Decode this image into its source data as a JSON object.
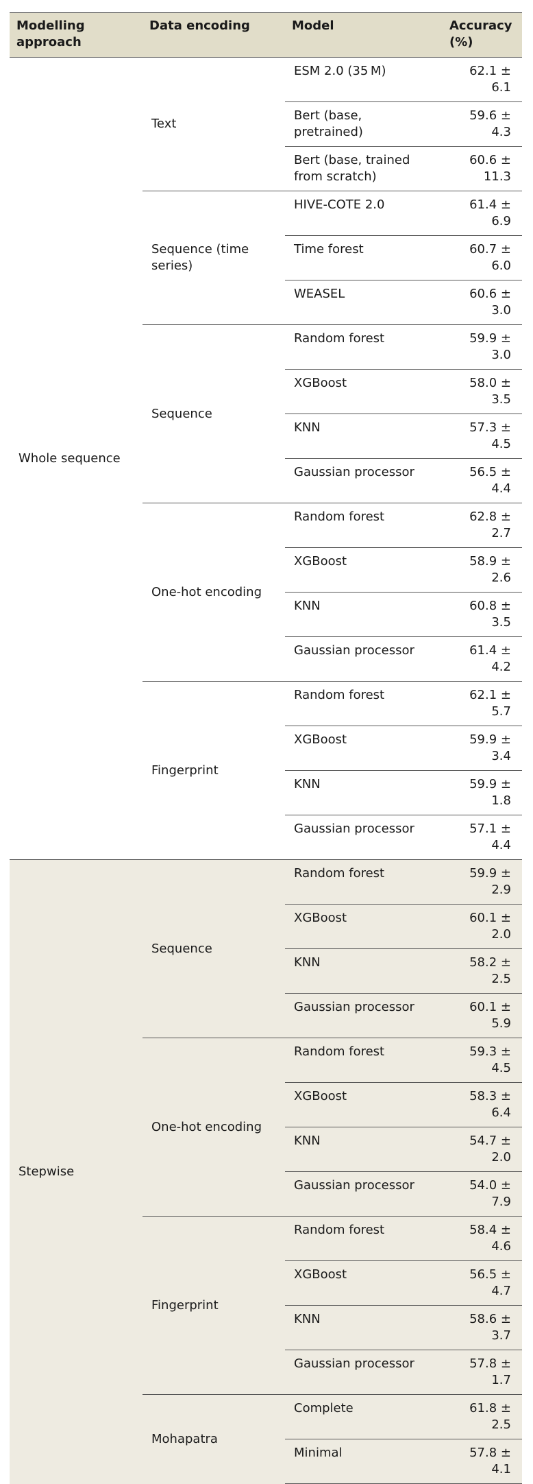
{
  "table": {
    "header": [
      "Modelling approach",
      "Data encoding",
      "Model",
      "Accuracy (%)"
    ],
    "groups": [
      {
        "approach": "Whole sequence",
        "encodings": [
          {
            "encoding": "Text",
            "rows": [
              [
                "ESM 2.0 (35 M)",
                "62.1 ± 6.1"
              ],
              [
                "Bert (base, pretrained)",
                "59.6 ± 4.3"
              ],
              [
                "Bert (base, trained from scratch)",
                "60.6 ± 11.3"
              ]
            ]
          },
          {
            "encoding": "Sequence (time series)",
            "rows": [
              [
                "HIVE-COTE 2.0",
                "61.4 ± 6.9"
              ],
              [
                "Time forest",
                "60.7 ± 6.0"
              ],
              [
                "WEASEL",
                "60.6 ± 3.0"
              ]
            ]
          },
          {
            "encoding": "Sequence",
            "rows": [
              [
                "Random forest",
                "59.9 ± 3.0"
              ],
              [
                "XGBoost",
                "58.0 ± 3.5"
              ],
              [
                "KNN",
                "57.3 ± 4.5"
              ],
              [
                "Gaussian processor",
                "56.5 ± 4.4"
              ]
            ]
          },
          {
            "encoding": "One-hot encoding",
            "rows": [
              [
                "Random forest",
                "62.8 ± 2.7"
              ],
              [
                "XGBoost",
                "58.9 ± 2.6"
              ],
              [
                "KNN",
                "60.8 ± 3.5"
              ],
              [
                "Gaussian processor",
                "61.4 ± 4.2"
              ]
            ]
          },
          {
            "encoding": "Fingerprint",
            "rows": [
              [
                "Random forest",
                "62.1 ± 5.7"
              ],
              [
                "XGBoost",
                "59.9 ± 3.4"
              ],
              [
                "KNN",
                "59.9 ± 1.8"
              ],
              [
                "Gaussian processor",
                "57.1 ± 4.4"
              ]
            ]
          }
        ]
      },
      {
        "approach": "Stepwise",
        "encodings": [
          {
            "encoding": "Sequence",
            "rows": [
              [
                "Random forest",
                "59.9 ± 2.9"
              ],
              [
                "XGBoost",
                "60.1 ± 2.0"
              ],
              [
                "KNN",
                "58.2 ± 2.5"
              ],
              [
                "Gaussian processor",
                "60.1 ± 5.9"
              ]
            ]
          },
          {
            "encoding": "One-hot encoding",
            "rows": [
              [
                "Random forest",
                "59.3 ± 4.5"
              ],
              [
                "XGBoost",
                "58.3 ± 6.4"
              ],
              [
                "KNN",
                "54.7 ± 2.0"
              ],
              [
                "Gaussian processor",
                "54.0 ± 7.9"
              ]
            ]
          },
          {
            "encoding": "Fingerprint",
            "rows": [
              [
                "Random forest",
                "58.4 ± 4.6"
              ],
              [
                "XGBoost",
                "56.5 ± 4.7"
              ],
              [
                "KNN",
                "58.6 ± 3.7"
              ],
              [
                "Gaussian processor",
                "57.8 ± 1.7"
              ]
            ]
          },
          {
            "encoding": "Mohapatra",
            "rows": [
              [
                "Complete",
                "61.8 ± 2.5"
              ],
              [
                "Minimal",
                "57.8 ± 4.1"
              ]
            ]
          }
        ]
      }
    ]
  }
}
